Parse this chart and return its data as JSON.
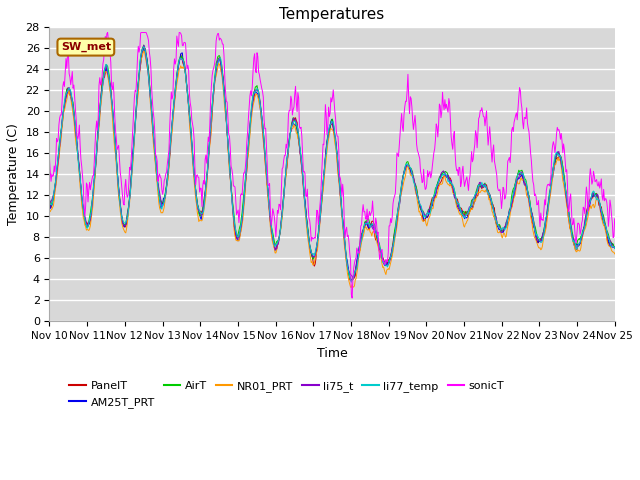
{
  "title": "Temperatures",
  "xlabel": "Time",
  "ylabel": "Temperature (C)",
  "ylim": [
    0,
    28
  ],
  "yticks": [
    0,
    2,
    4,
    6,
    8,
    10,
    12,
    14,
    16,
    18,
    20,
    22,
    24,
    26,
    28
  ],
  "xtick_labels": [
    "Nov 10",
    "Nov 11",
    "Nov 12",
    "Nov 13",
    "Nov 14",
    "Nov 15",
    "Nov 16",
    "Nov 17",
    "Nov 18",
    "Nov 19",
    "Nov 20",
    "Nov 21",
    "Nov 22",
    "Nov 23",
    "Nov 24",
    "Nov 25"
  ],
  "annotation": "SW_met",
  "series_colors": {
    "PanelT": "#cc0000",
    "AM25T_PRT": "#0000ee",
    "AirT": "#00cc00",
    "NR01_PRT": "#ff9900",
    "li75_t": "#8800cc",
    "li77_temp": "#00cccc",
    "sonicT": "#ff00ff"
  },
  "plot_bg_color": "#d8d8d8",
  "fig_bg_color": "#ffffff",
  "lw": 0.7
}
